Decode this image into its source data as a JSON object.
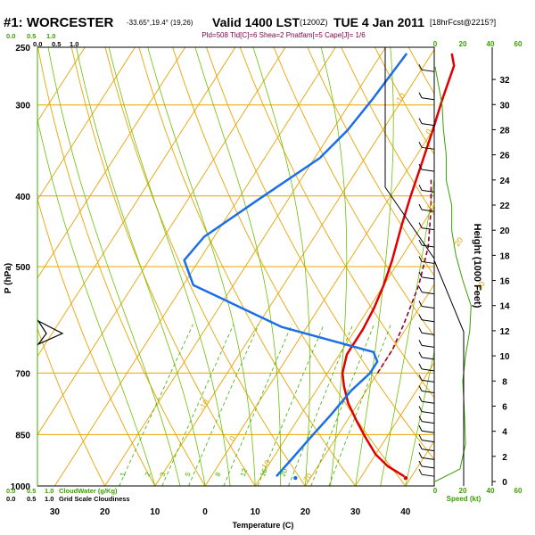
{
  "header": {
    "station": "#1: WORCESTER",
    "coords": "-33.65°,19.4° (19,26)",
    "valid": "Valid 1400 LST",
    "utc": "(1200Z)",
    "date": "TUE 4 Jan 2011",
    "forecast": "[18hrFcst@2215?]",
    "indices": "Pld=508 Tld[C]=6 Shea=2 Pnatfam[=5 Cape[J]= 1/6"
  },
  "axes": {
    "ylabel": "P (hPa)",
    "xlabel": "Temperature (C)",
    "right_label": "Height (1000 Feet)",
    "pressure_ticks": [
      "250",
      "300",
      "400",
      "500",
      "700",
      "850",
      "1000"
    ],
    "temp_ticks": [
      "30",
      "20",
      "10",
      "0",
      "10",
      "20",
      "30",
      "40"
    ],
    "height_ticks": [
      "0",
      "2",
      "4",
      "6",
      "8",
      "10",
      "12",
      "14",
      "16",
      "18",
      "20",
      "22",
      "24",
      "26",
      "28",
      "30",
      "32"
    ],
    "speed_ticks_top": [
      "0",
      "20",
      "40",
      "60"
    ],
    "speed_ticks_bottom": [
      "0",
      "20",
      "40",
      "60"
    ],
    "speed_label": "Speed (kt)",
    "cloud_ticks_top_green": [
      "0.0",
      "0.5",
      "1.0"
    ],
    "cloud_ticks_top_black": [
      "0.0",
      "0.5",
      "1.0"
    ],
    "cloud_ticks_bottom_green": [
      "0.0",
      "0.5",
      "1.0"
    ],
    "cloud_ticks_bottom_black": [
      "0.0",
      "0.5",
      "1.0"
    ],
    "cloud_water_label": "CloudWater (g/Kg)",
    "grid_cloud_label": "Grid Scale Cloudiness"
  },
  "isotherm_labels": [
    "-10",
    "0",
    "10",
    "20",
    "30",
    "-10",
    "0",
    "10",
    "20"
  ],
  "mixing_ratio_labels": [
    "1",
    "2",
    "3",
    "5",
    "8",
    "12",
    "16",
    "20"
  ],
  "colors": {
    "temperature": "#e00000",
    "dewpoint": "#1a6fe8",
    "parcel": "#8a0040",
    "isotherm": "#e8a400",
    "dry_adiabat": "#e8a400",
    "moist_adiabat": "#6cc000",
    "mixing_ratio": "#3cb000",
    "wind_profile": "#3aa000",
    "header_sub": "#7a0046"
  },
  "chart_data": {
    "type": "line",
    "title": "#1: WORCESTER Valid 1400 LST (1200Z) TUE 4 Jan 2011",
    "xlabel": "Temperature (C)",
    "ylabel": "P (hPa)",
    "xlim": [
      -35,
      45
    ],
    "ylim": [
      1000,
      250
    ],
    "series": [
      {
        "points": [
          [
            38.5,
            970
          ],
          [
            34,
            940
          ],
          [
            30,
            905
          ],
          [
            26,
            860
          ],
          [
            22,
            815
          ],
          [
            18,
            770
          ],
          [
            15,
            730
          ],
          [
            13,
            700
          ],
          [
            11.5,
            660
          ],
          [
            11.5,
            640
          ],
          [
            11.5,
            610
          ],
          [
            11,
            570
          ],
          [
            10,
            530
          ],
          [
            8.5,
            490
          ],
          [
            6,
            440
          ],
          [
            4,
            400
          ],
          [
            2,
            360
          ],
          [
            0,
            325
          ],
          [
            -2,
            295
          ],
          [
            -4,
            265
          ],
          [
            -6,
            255
          ]
        ]
      },
      {
        "points": [
          [
            13,
            970
          ],
          [
            14,
            910
          ],
          [
            15,
            850
          ],
          [
            16,
            800
          ],
          [
            17,
            740
          ],
          [
            18.5,
            700
          ],
          [
            18.5,
            675
          ],
          [
            16.5,
            655
          ],
          [
            -5,
            605
          ],
          [
            -28,
            530
          ],
          [
            -33,
            490
          ],
          [
            -32,
            455
          ],
          [
            -26,
            405
          ],
          [
            -19,
            355
          ],
          [
            -17,
            325
          ],
          [
            -16,
            295
          ],
          [
            -15,
            255
          ]
        ]
      },
      {
        "points": [
          [
            20,
            700
          ],
          [
            20,
            650
          ],
          [
            19,
            600
          ],
          [
            17,
            530
          ],
          [
            14,
            470
          ],
          [
            10,
            420
          ],
          [
            6,
            380
          ]
        ]
      }
    ],
    "surface_points": [
      {
        "t": 39,
        "p": 975
      },
      {
        "t": 17,
        "p": 975
      }
    ],
    "wind_speed_profile": [
      [
        0,
        0
      ],
      [
        18,
        1
      ],
      [
        22,
        3
      ],
      [
        21,
        6
      ],
      [
        20,
        8
      ],
      [
        22,
        10
      ],
      [
        25,
        12
      ],
      [
        26,
        14
      ],
      [
        20,
        16
      ],
      [
        15,
        18
      ],
      [
        12,
        20
      ],
      [
        12,
        22
      ],
      [
        8,
        24
      ],
      [
        8,
        26
      ],
      [
        6,
        28
      ],
      [
        5,
        30
      ],
      [
        0,
        33
      ]
    ],
    "grid": true
  }
}
